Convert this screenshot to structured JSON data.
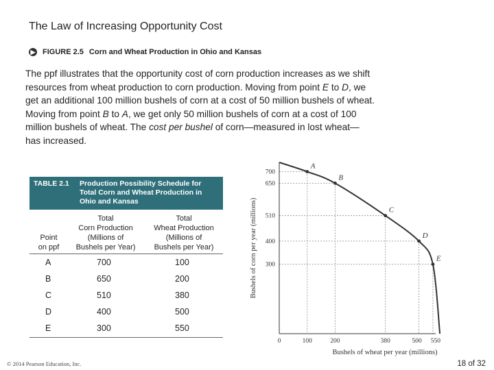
{
  "slide_title": "The Law of Increasing Opportunity Cost",
  "figure": {
    "icon": "play-circle-icon",
    "number": "FIGURE 2.5",
    "caption": "Corn and Wheat Production in Ohio and Kansas"
  },
  "paragraph": {
    "line1": "The ppf illustrates that the opportunity cost of corn production increases as we shift",
    "line2": "resources from wheat production to corn production. Moving from point",
    "line2_var1": "E",
    "line2_mid": "to",
    "line2_var2": "D",
    "line2_end": ", we",
    "line3": "get an additional 100 million bushels of corn at a cost of 50 million bushels of wheat.",
    "line4_start": "Moving from point",
    "line4_var1": "B",
    "line4_mid": "to",
    "line4_var2": "A",
    "line4_end": ", we get only 50 million bushels of corn at a cost of 100",
    "line5_start": "million bushels of wheat. The",
    "line5_em": "cost per bushel",
    "line5_end": "of corn—measured in lost wheat—",
    "line6": "has increased."
  },
  "table": {
    "number": "TABLE 2.1",
    "caption": "Production Possibility Schedule for Total Corn and Wheat Production in Ohio and Kansas",
    "headers": {
      "point_l1": "Point",
      "point_l2": "on ppf",
      "corn_l1": "Total",
      "corn_l2": "Corn Production",
      "corn_l3": "(Millions of",
      "corn_l4": "Bushels per Year)",
      "wheat_l1": "Total",
      "wheat_l2": "Wheat Production",
      "wheat_l3": "(Millions of",
      "wheat_l4": "Bushels per Year)"
    },
    "rows": [
      {
        "point": "A",
        "corn": "700",
        "wheat": "100"
      },
      {
        "point": "B",
        "corn": "650",
        "wheat": "200"
      },
      {
        "point": "C",
        "corn": "510",
        "wheat": "380"
      },
      {
        "point": "D",
        "corn": "400",
        "wheat": "500"
      },
      {
        "point": "E",
        "corn": "300",
        "wheat": "550"
      }
    ]
  },
  "chart_data": {
    "type": "line",
    "title": "",
    "xlabel": "Bushels of wheat per year (millions)",
    "ylabel": "Bushels of corn per year (millions)",
    "x_ticks": [
      0,
      100,
      200,
      380,
      500,
      550
    ],
    "y_ticks": [
      300,
      400,
      510,
      650,
      700
    ],
    "xlim": [
      0,
      560
    ],
    "ylim": [
      0,
      740
    ],
    "grid": false,
    "points": [
      {
        "label": "A",
        "wheat": 100,
        "corn": 700
      },
      {
        "label": "B",
        "wheat": 200,
        "corn": 650
      },
      {
        "label": "C",
        "wheat": 380,
        "corn": 510
      },
      {
        "label": "D",
        "wheat": 500,
        "corn": 400
      },
      {
        "label": "E",
        "wheat": 550,
        "corn": 300
      }
    ],
    "curve_endpoints": {
      "corn_intercept": 740,
      "wheat_intercept": 575
    }
  },
  "footer": "© 2014 Pearson Education, Inc.",
  "page": {
    "current": "18",
    "of_label": "of",
    "total": "32"
  }
}
